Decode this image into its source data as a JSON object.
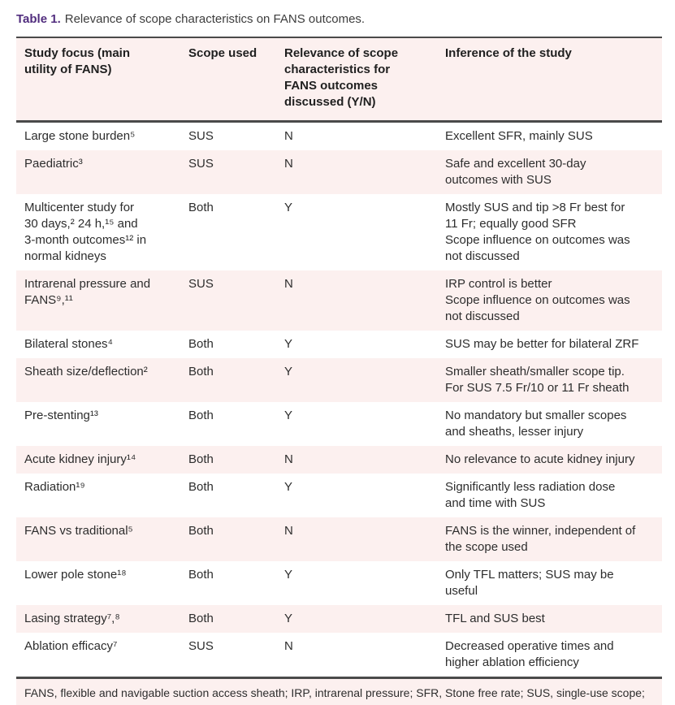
{
  "caption": {
    "label": "Table 1.",
    "text": "Relevance of scope characteristics on FANS outcomes."
  },
  "colors": {
    "caption_label_purple": "#512d7e",
    "row_stripe_pink": "#fcf0ef",
    "rule_dark": "#4a4a4a",
    "body_text": "#2d2d2d"
  },
  "table": {
    "headers": [
      "Study focus (main\nutility of FANS)",
      "Scope used",
      "Relevance of scope\ncharacteristics for\nFANS outcomes\ndiscussed (Y/N)",
      "Inference of the study"
    ],
    "rows": [
      {
        "focus": "Large stone burden⁵",
        "scope": "SUS",
        "relevance": "N",
        "inference": "Excellent SFR, mainly SUS"
      },
      {
        "focus": "Paediatric³",
        "scope": "SUS",
        "relevance": "N",
        "inference": "Safe and excellent 30-day\noutcomes with SUS"
      },
      {
        "focus": "Multicenter study for\n30 days,² 24 h,¹⁵ and\n3-month outcomes¹² in\nnormal kidneys",
        "scope": "Both",
        "relevance": "Y",
        "inference": "Mostly SUS and tip >8 Fr best for\n11 Fr; equally good SFR\nScope influence on outcomes was\nnot discussed"
      },
      {
        "focus": "Intrarenal pressure and\nFANS⁹,¹¹",
        "scope": "SUS",
        "relevance": "N",
        "inference": "IRP control is better\nScope influence on outcomes was\nnot discussed"
      },
      {
        "focus": "Bilateral stones⁴",
        "scope": "Both",
        "relevance": "Y",
        "inference": "SUS may be better for bilateral ZRF"
      },
      {
        "focus": "Sheath size/deflection²",
        "scope": "Both",
        "relevance": "Y",
        "inference": "Smaller sheath/smaller scope tip.\nFor SUS 7.5 Fr/10 or 11 Fr sheath"
      },
      {
        "focus": "Pre-stenting¹³",
        "scope": "Both",
        "relevance": "Y",
        "inference": "No mandatory but smaller scopes\nand sheaths, lesser injury"
      },
      {
        "focus": "Acute kidney injury¹⁴",
        "scope": "Both",
        "relevance": "N",
        "inference": "No relevance to acute kidney injury"
      },
      {
        "focus": "Radiation¹⁹",
        "scope": "Both",
        "relevance": "Y",
        "inference": "Significantly less radiation dose\nand time with SUS"
      },
      {
        "focus": "FANS vs traditional⁵",
        "scope": "Both",
        "relevance": "N",
        "inference": "FANS is the winner, independent of\nthe scope used"
      },
      {
        "focus": "Lower pole stone¹⁸",
        "scope": "Both",
        "relevance": "Y",
        "inference": "Only TFL matters; SUS may be\nuseful"
      },
      {
        "focus": "Lasing strategy⁷,⁸",
        "scope": "Both",
        "relevance": "Y",
        "inference": "TFL and SUS best"
      },
      {
        "focus": "Ablation efficacy⁷",
        "scope": "SUS",
        "relevance": "N",
        "inference": "Decreased operative times and\nhigher ablation efficiency"
      }
    ]
  },
  "footnote": "FANS, flexible and navigable suction access sheath; IRP, intrarenal pressure; SFR, Stone free rate; SUS, single-use scope; TFL, thulium fiber laser; ZRF, Zero residual fragments."
}
